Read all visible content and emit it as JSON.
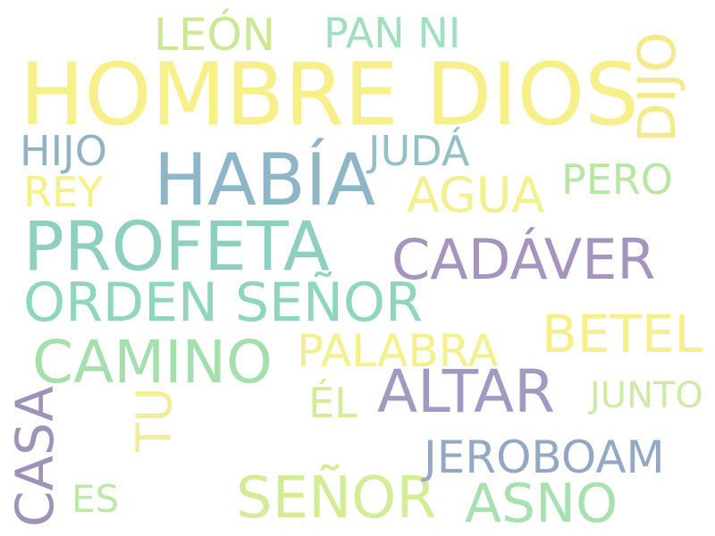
{
  "words": {
    "hombre_dios": {
      "text": "HOMBRE DIOS",
      "color": "#f7ef8a"
    },
    "habia": {
      "text": "HABÍA",
      "color": "#8fb6c6"
    },
    "profeta": {
      "text": "PROFETA",
      "color": "#8fcfc0"
    },
    "cadaver": {
      "text": "CADÁVER",
      "color": "#a594bd"
    },
    "orden_senor": {
      "text": "ORDEN SEÑOR",
      "color": "#8fd6bd"
    },
    "camino": {
      "text": "CAMINO",
      "color": "#a6dfae"
    },
    "altar": {
      "text": "ALTAR",
      "color": "#a199bf"
    },
    "betel": {
      "text": "BETEL",
      "color": "#f7ef8a"
    },
    "palabra": {
      "text": "PALABRA",
      "color": "#f2f08f"
    },
    "senor": {
      "text": "SEÑOR",
      "color": "#d4ec97"
    },
    "asno": {
      "text": "ASNO",
      "color": "#a9e0b2"
    },
    "jeroboam": {
      "text": "JEROBOAM",
      "color": "#94a8c4"
    },
    "leon": {
      "text": "LEÓN",
      "color": "#cde892"
    },
    "pan_ni": {
      "text": "PAN NI",
      "color": "#a4dec0"
    },
    "hijo": {
      "text": "HIJO",
      "color": "#93b3c3"
    },
    "juda": {
      "text": "JUDÁ",
      "color": "#93c0c4"
    },
    "agua": {
      "text": "AGUA",
      "color": "#f2f08f"
    },
    "pero": {
      "text": "PERO",
      "color": "#b8e6a5"
    },
    "rey": {
      "text": "REY",
      "color": "#f7ef8a"
    },
    "el": {
      "text": "ÉL",
      "color": "#d4ec97"
    },
    "junto": {
      "text": "JUNTO",
      "color": "#cfeaa6"
    },
    "es": {
      "text": "ES",
      "color": "#bde8a6"
    },
    "dijo": {
      "text": "DIJO",
      "color": "#f2ea8c"
    },
    "casa": {
      "text": "CASA",
      "color": "#9e92b8"
    },
    "tu": {
      "text": "TU",
      "color": "#f3ee95"
    }
  }
}
